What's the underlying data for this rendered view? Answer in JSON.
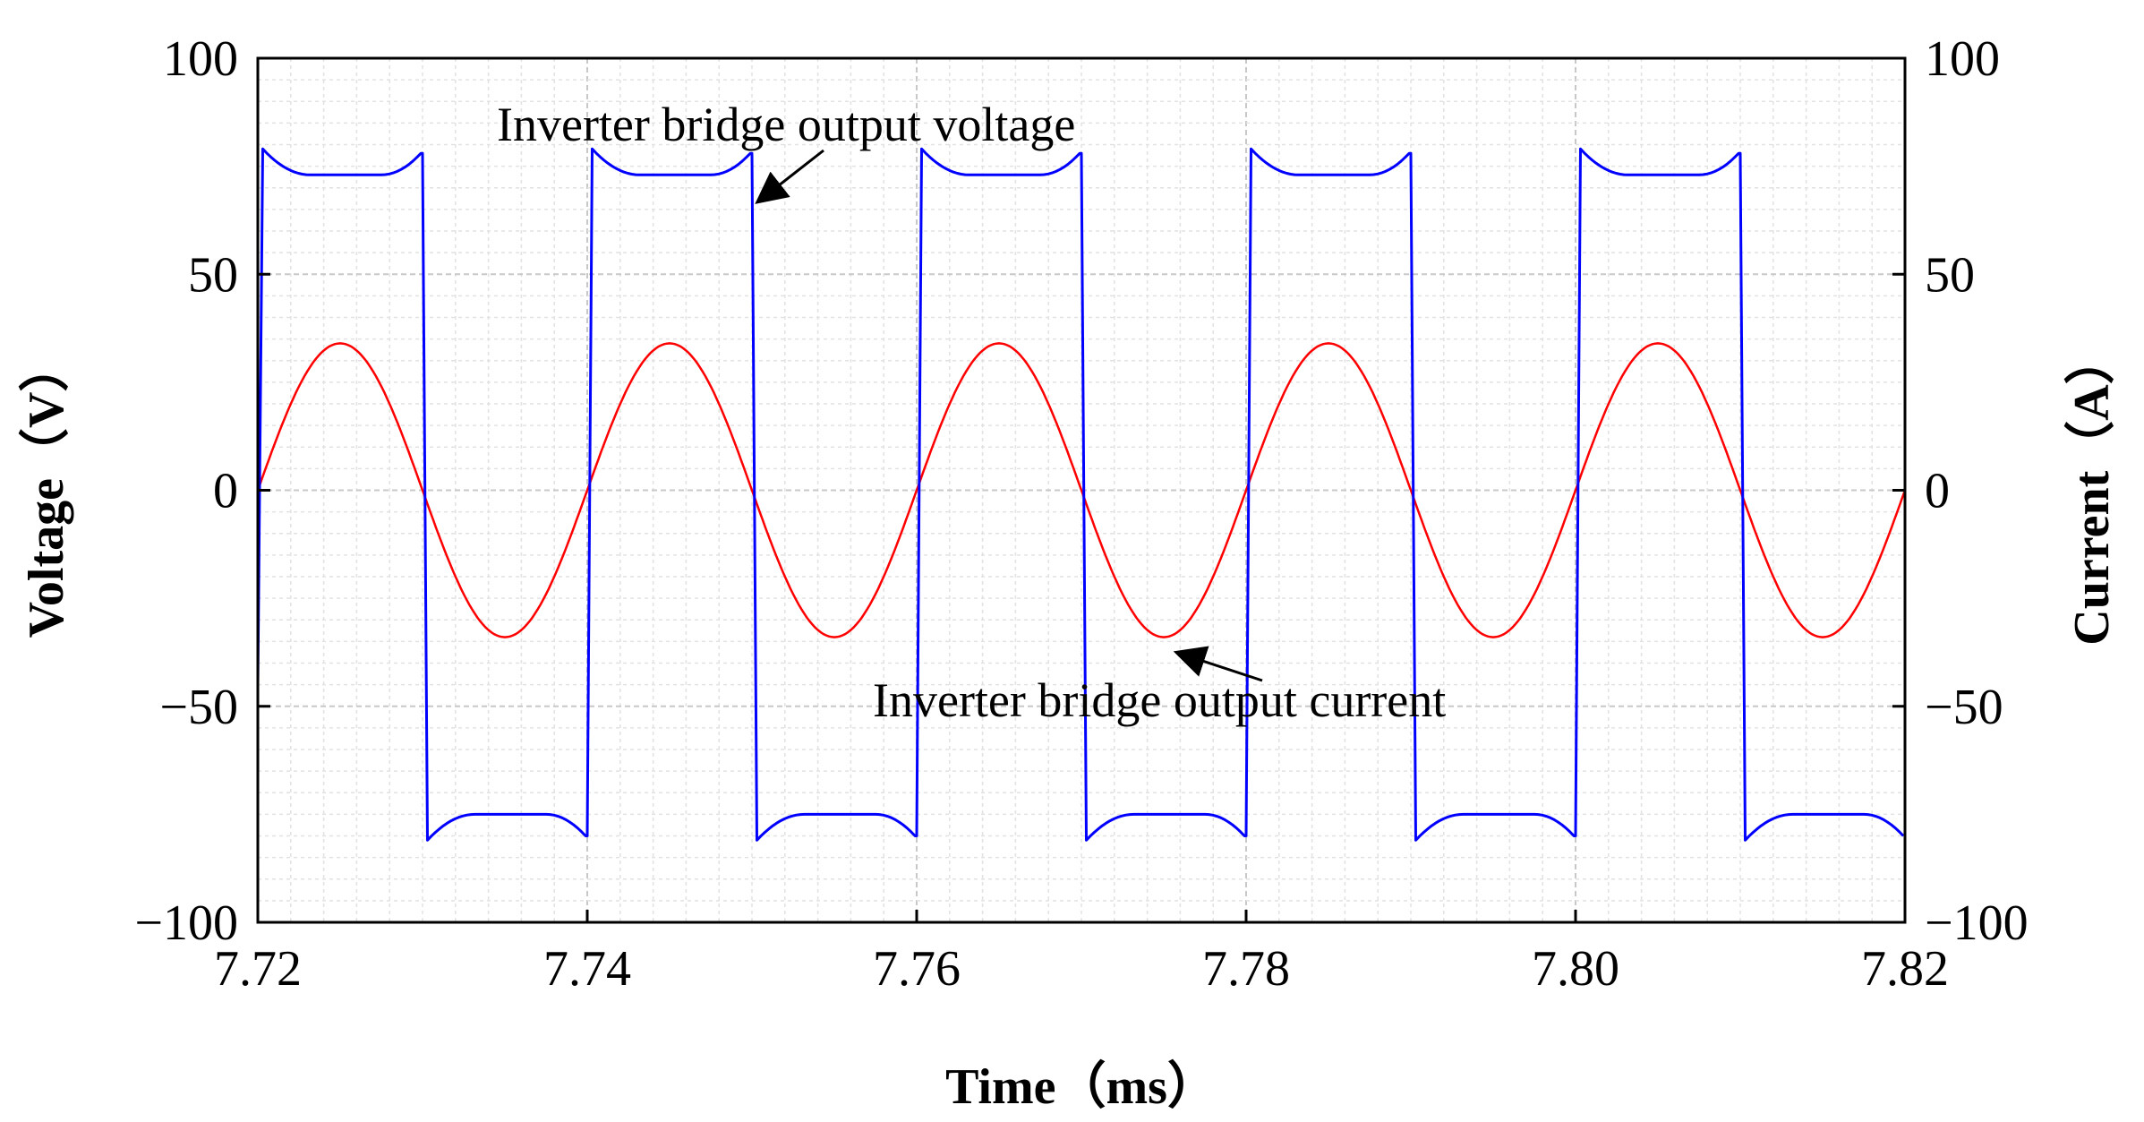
{
  "chart_data": {
    "type": "line",
    "xlabel": "Time（ms）",
    "ylabel_left": "Voltage（V）",
    "ylabel_right": "Current（A）",
    "xlim": [
      7.72,
      7.82
    ],
    "ylim_left": [
      -100,
      100
    ],
    "ylim_right": [
      -100,
      100
    ],
    "x_ticks": [
      7.72,
      7.74,
      7.76,
      7.78,
      7.8,
      7.82
    ],
    "x_tick_labels": [
      "7.72",
      "7.74",
      "7.76",
      "7.78",
      "7.80",
      "7.82"
    ],
    "y_ticks": [
      100,
      50,
      0,
      -50,
      -100
    ],
    "y_tick_labels": [
      "100",
      "50",
      "0",
      "−50",
      "−100"
    ],
    "grid": true,
    "series": [
      {
        "color": "#0000ff",
        "axis": "left",
        "period_ms": 0.02,
        "phase_start_ms": 7.72,
        "high_level_V": [
          79,
          73,
          73,
          78
        ],
        "low_level_V": [
          -81,
          -75,
          -75,
          -80
        ],
        "switching_times_ms": [
          7.72,
          7.73,
          7.74,
          7.75,
          7.76,
          7.77,
          7.78,
          7.79,
          7.8,
          7.81,
          7.82
        ]
      },
      {
        "color": "#ff0000",
        "axis": "right",
        "amplitude_A": 34,
        "period_ms": 0.02,
        "peak_times_ms": [
          7.725,
          7.745,
          7.765,
          7.785,
          7.805
        ],
        "trough_times_ms": [
          7.735,
          7.755,
          7.775,
          7.795,
          7.815
        ]
      }
    ],
    "annotations": [
      {
        "text": "Inverter bridge output voltage",
        "target_x": 7.75,
        "target_y": 67
      },
      {
        "text": "Inverter bridge output current",
        "target_x": 7.776,
        "target_y": -36
      }
    ]
  }
}
